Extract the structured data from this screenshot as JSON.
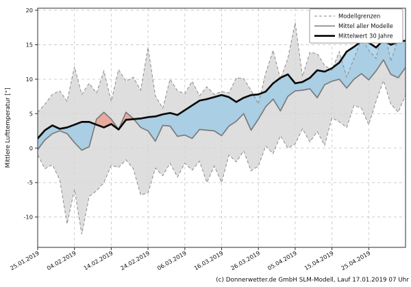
{
  "caption": "(c) Donnerwetter.de GmbH SLM-Modell, Lauf 17.01.2019 07 Uhr",
  "chart_data": {
    "type": "line",
    "title": "",
    "xlabel": "",
    "ylabel": "Mittlere Lufttemperatur [°]",
    "ylim": [
      -14.4,
      20.3
    ],
    "yticks": [
      -10,
      -5,
      0,
      5,
      10,
      15,
      20
    ],
    "xlim_days": [
      0,
      100
    ],
    "x_epoch": "25.01.2019",
    "grid": "dashed",
    "xticks": {
      "days": [
        0,
        10,
        20,
        30,
        40,
        50,
        60,
        70,
        80,
        90
      ],
      "labels": [
        "25.01.2019",
        "04.02.2019",
        "14.02.2019",
        "24.02.2019",
        "06.03.2019",
        "16.03.2019",
        "26.03.2019",
        "05.04.2019",
        "15.04.2019",
        "25.04.2019"
      ]
    },
    "legend": {
      "position": "top-right",
      "entries": [
        {
          "label": "Modellgrenzen",
          "style": "dashed-gray"
        },
        {
          "label": "Mittel aller Modelle",
          "style": "solid-gray"
        },
        {
          "label": "Mittelwert 30 Jahre",
          "style": "thick-black"
        }
      ]
    },
    "x_days": [
      0,
      2,
      4,
      6,
      8,
      10,
      12,
      14,
      16,
      18,
      20,
      22,
      24,
      26,
      28,
      30,
      32,
      34,
      36,
      38,
      40,
      42,
      44,
      46,
      48,
      50,
      52,
      54,
      56,
      58,
      60,
      62,
      64,
      66,
      68,
      70,
      72,
      74,
      76,
      78,
      80,
      82,
      84,
      86,
      88,
      90,
      92,
      94,
      96,
      98,
      100
    ],
    "series": [
      {
        "name": "Modellgrenze oben",
        "role": "upper-bound",
        "values": [
          5.2,
          6.4,
          7.8,
          8.3,
          6.8,
          11.8,
          7.8,
          9.4,
          8.0,
          11.2,
          6.8,
          11.4,
          9.7,
          10.3,
          8.4,
          14.6,
          7.6,
          5.8,
          10.0,
          8.3,
          7.9,
          9.7,
          7.6,
          8.9,
          7.8,
          8.2,
          8.0,
          10.2,
          10.1,
          8.4,
          6.4,
          10.9,
          14.2,
          10.0,
          13.0,
          18.2,
          10.4,
          13.9,
          13.7,
          12.0,
          11.3,
          14.0,
          10.3,
          13.0,
          15.9,
          14.2,
          13.0,
          17.7,
          12.6,
          15.8,
          15.5
        ]
      },
      {
        "name": "Modellgrenze unten",
        "role": "lower-bound",
        "values": [
          -1.0,
          -3.0,
          -2.4,
          -4.6,
          -11.0,
          -6.0,
          -12.5,
          -7.0,
          -6.2,
          -5.0,
          -2.5,
          -2.8,
          -1.7,
          -3.0,
          -6.8,
          -6.5,
          -2.9,
          -4.0,
          -2.2,
          -4.2,
          -2.2,
          -3.2,
          -1.9,
          -5.0,
          -2.6,
          -5.0,
          -1.0,
          -2.0,
          -0.4,
          -3.3,
          -2.6,
          0.3,
          -0.8,
          1.8,
          0.0,
          0.6,
          2.8,
          0.9,
          2.4,
          0.4,
          4.4,
          3.8,
          3.0,
          6.2,
          5.8,
          3.4,
          6.8,
          9.8,
          6.4,
          5.2,
          7.7
        ]
      },
      {
        "name": "Mittel aller Modelle",
        "role": "model-mean",
        "values": [
          -0.2,
          1.2,
          2.1,
          2.5,
          2.1,
          0.8,
          -0.3,
          0.2,
          4.2,
          5.2,
          4.2,
          2.7,
          5.2,
          4.3,
          3.0,
          2.5,
          1.0,
          3.3,
          3.2,
          1.7,
          1.9,
          1.4,
          2.7,
          2.6,
          2.5,
          1.8,
          3.2,
          3.9,
          5.0,
          2.6,
          4.2,
          6.0,
          7.1,
          5.4,
          7.5,
          8.3,
          8.4,
          8.6,
          7.3,
          9.2,
          9.7,
          10.0,
          8.7,
          10.0,
          10.8,
          9.9,
          11.2,
          12.8,
          10.7,
          10.2,
          11.7
        ]
      },
      {
        "name": "Mittelwert 30 Jahre",
        "role": "climate-mean",
        "values": [
          1.4,
          2.6,
          3.3,
          2.8,
          3.0,
          3.4,
          3.8,
          3.8,
          3.4,
          3.0,
          3.5,
          2.7,
          4.1,
          4.2,
          4.3,
          4.5,
          4.6,
          4.9,
          5.1,
          4.8,
          5.5,
          6.2,
          6.9,
          7.1,
          7.4,
          7.7,
          7.4,
          6.7,
          7.3,
          7.7,
          7.8,
          8.2,
          9.4,
          10.2,
          10.7,
          9.4,
          9.6,
          10.2,
          11.3,
          11.1,
          11.6,
          12.4,
          14.0,
          14.7,
          15.5,
          15.3,
          14.6,
          15.7,
          15.0,
          15.4,
          15.6
        ]
      }
    ],
    "fills": {
      "envelope": "gray band between model bounds",
      "colder": "blue where model mean below 30-year mean",
      "warmer": "pink where model mean above 30-year mean"
    },
    "colors": {
      "envelope_fill": "#d6d6d6",
      "bound_line": "#8a8a8a",
      "model_mean_line": "#7a7a7a",
      "climate_mean_line": "#0a0a0a",
      "colder_fill": "#96c8e4",
      "warmer_fill": "#eb9687",
      "grid": "#c8c8c8",
      "frame": "#2b2b2b"
    }
  }
}
